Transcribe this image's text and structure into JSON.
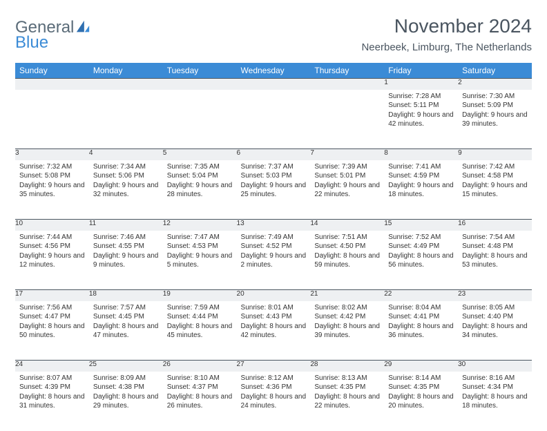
{
  "brand": {
    "line1": "General",
    "line2": "Blue",
    "color1": "#5a6b78",
    "color2": "#3b8bd6"
  },
  "title": "November 2024",
  "location": "Neerbeek, Limburg, The Netherlands",
  "header_bg": "#3b8bd6",
  "daynum_bg": "#eef0f2",
  "weekdays": [
    "Sunday",
    "Monday",
    "Tuesday",
    "Wednesday",
    "Thursday",
    "Friday",
    "Saturday"
  ],
  "weeks": [
    [
      {
        "n": "",
        "sr": "",
        "ss": "",
        "dl": ""
      },
      {
        "n": "",
        "sr": "",
        "ss": "",
        "dl": ""
      },
      {
        "n": "",
        "sr": "",
        "ss": "",
        "dl": ""
      },
      {
        "n": "",
        "sr": "",
        "ss": "",
        "dl": ""
      },
      {
        "n": "",
        "sr": "",
        "ss": "",
        "dl": ""
      },
      {
        "n": "1",
        "sr": "Sunrise: 7:28 AM",
        "ss": "Sunset: 5:11 PM",
        "dl": "Daylight: 9 hours and 42 minutes."
      },
      {
        "n": "2",
        "sr": "Sunrise: 7:30 AM",
        "ss": "Sunset: 5:09 PM",
        "dl": "Daylight: 9 hours and 39 minutes."
      }
    ],
    [
      {
        "n": "3",
        "sr": "Sunrise: 7:32 AM",
        "ss": "Sunset: 5:08 PM",
        "dl": "Daylight: 9 hours and 35 minutes."
      },
      {
        "n": "4",
        "sr": "Sunrise: 7:34 AM",
        "ss": "Sunset: 5:06 PM",
        "dl": "Daylight: 9 hours and 32 minutes."
      },
      {
        "n": "5",
        "sr": "Sunrise: 7:35 AM",
        "ss": "Sunset: 5:04 PM",
        "dl": "Daylight: 9 hours and 28 minutes."
      },
      {
        "n": "6",
        "sr": "Sunrise: 7:37 AM",
        "ss": "Sunset: 5:03 PM",
        "dl": "Daylight: 9 hours and 25 minutes."
      },
      {
        "n": "7",
        "sr": "Sunrise: 7:39 AM",
        "ss": "Sunset: 5:01 PM",
        "dl": "Daylight: 9 hours and 22 minutes."
      },
      {
        "n": "8",
        "sr": "Sunrise: 7:41 AM",
        "ss": "Sunset: 4:59 PM",
        "dl": "Daylight: 9 hours and 18 minutes."
      },
      {
        "n": "9",
        "sr": "Sunrise: 7:42 AM",
        "ss": "Sunset: 4:58 PM",
        "dl": "Daylight: 9 hours and 15 minutes."
      }
    ],
    [
      {
        "n": "10",
        "sr": "Sunrise: 7:44 AM",
        "ss": "Sunset: 4:56 PM",
        "dl": "Daylight: 9 hours and 12 minutes."
      },
      {
        "n": "11",
        "sr": "Sunrise: 7:46 AM",
        "ss": "Sunset: 4:55 PM",
        "dl": "Daylight: 9 hours and 9 minutes."
      },
      {
        "n": "12",
        "sr": "Sunrise: 7:47 AM",
        "ss": "Sunset: 4:53 PM",
        "dl": "Daylight: 9 hours and 5 minutes."
      },
      {
        "n": "13",
        "sr": "Sunrise: 7:49 AM",
        "ss": "Sunset: 4:52 PM",
        "dl": "Daylight: 9 hours and 2 minutes."
      },
      {
        "n": "14",
        "sr": "Sunrise: 7:51 AM",
        "ss": "Sunset: 4:50 PM",
        "dl": "Daylight: 8 hours and 59 minutes."
      },
      {
        "n": "15",
        "sr": "Sunrise: 7:52 AM",
        "ss": "Sunset: 4:49 PM",
        "dl": "Daylight: 8 hours and 56 minutes."
      },
      {
        "n": "16",
        "sr": "Sunrise: 7:54 AM",
        "ss": "Sunset: 4:48 PM",
        "dl": "Daylight: 8 hours and 53 minutes."
      }
    ],
    [
      {
        "n": "17",
        "sr": "Sunrise: 7:56 AM",
        "ss": "Sunset: 4:47 PM",
        "dl": "Daylight: 8 hours and 50 minutes."
      },
      {
        "n": "18",
        "sr": "Sunrise: 7:57 AM",
        "ss": "Sunset: 4:45 PM",
        "dl": "Daylight: 8 hours and 47 minutes."
      },
      {
        "n": "19",
        "sr": "Sunrise: 7:59 AM",
        "ss": "Sunset: 4:44 PM",
        "dl": "Daylight: 8 hours and 45 minutes."
      },
      {
        "n": "20",
        "sr": "Sunrise: 8:01 AM",
        "ss": "Sunset: 4:43 PM",
        "dl": "Daylight: 8 hours and 42 minutes."
      },
      {
        "n": "21",
        "sr": "Sunrise: 8:02 AM",
        "ss": "Sunset: 4:42 PM",
        "dl": "Daylight: 8 hours and 39 minutes."
      },
      {
        "n": "22",
        "sr": "Sunrise: 8:04 AM",
        "ss": "Sunset: 4:41 PM",
        "dl": "Daylight: 8 hours and 36 minutes."
      },
      {
        "n": "23",
        "sr": "Sunrise: 8:05 AM",
        "ss": "Sunset: 4:40 PM",
        "dl": "Daylight: 8 hours and 34 minutes."
      }
    ],
    [
      {
        "n": "24",
        "sr": "Sunrise: 8:07 AM",
        "ss": "Sunset: 4:39 PM",
        "dl": "Daylight: 8 hours and 31 minutes."
      },
      {
        "n": "25",
        "sr": "Sunrise: 8:09 AM",
        "ss": "Sunset: 4:38 PM",
        "dl": "Daylight: 8 hours and 29 minutes."
      },
      {
        "n": "26",
        "sr": "Sunrise: 8:10 AM",
        "ss": "Sunset: 4:37 PM",
        "dl": "Daylight: 8 hours and 26 minutes."
      },
      {
        "n": "27",
        "sr": "Sunrise: 8:12 AM",
        "ss": "Sunset: 4:36 PM",
        "dl": "Daylight: 8 hours and 24 minutes."
      },
      {
        "n": "28",
        "sr": "Sunrise: 8:13 AM",
        "ss": "Sunset: 4:35 PM",
        "dl": "Daylight: 8 hours and 22 minutes."
      },
      {
        "n": "29",
        "sr": "Sunrise: 8:14 AM",
        "ss": "Sunset: 4:35 PM",
        "dl": "Daylight: 8 hours and 20 minutes."
      },
      {
        "n": "30",
        "sr": "Sunrise: 8:16 AM",
        "ss": "Sunset: 4:34 PM",
        "dl": "Daylight: 8 hours and 18 minutes."
      }
    ]
  ]
}
